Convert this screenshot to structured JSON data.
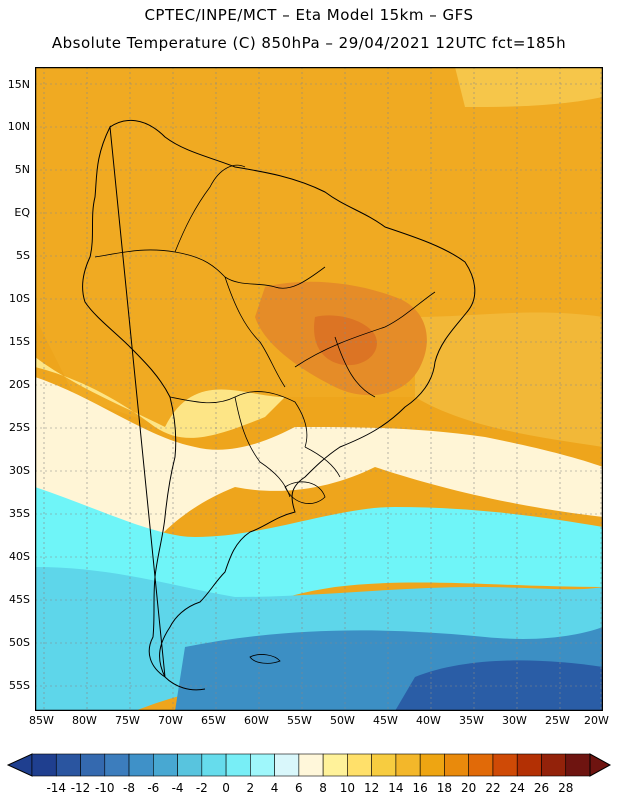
{
  "header": {
    "line1": "CPTEC/INPE/MCT –  Eta Model 15km – GFS",
    "line2": "Absolute Temperature (C) 850hPa – 29/04/2021 12UTC fct=185h"
  },
  "axes": {
    "lat_labels": [
      "15N",
      "10N",
      "5N",
      "EQ",
      "5S",
      "10S",
      "15S",
      "20S",
      "25S",
      "30S",
      "35S",
      "40S",
      "45S",
      "50S",
      "55S"
    ],
    "lon_labels": [
      "85W",
      "80W",
      "75W",
      "70W",
      "65W",
      "60W",
      "55W",
      "50W",
      "45W",
      "40W",
      "35W",
      "30W",
      "25W",
      "20W"
    ]
  },
  "colorbar": {
    "labels": [
      "-14",
      "-12",
      "-10",
      "-8",
      "-6",
      "-4",
      "-2",
      "0",
      "2",
      "4",
      "6",
      "8",
      "10",
      "12",
      "14",
      "16",
      "18",
      "20",
      "22",
      "24",
      "26",
      "28"
    ],
    "colors": [
      "#1f3f8f",
      "#2a55a0",
      "#3469af",
      "#3c7dbd",
      "#3f91c8",
      "#48a8d2",
      "#58c4de",
      "#66dcec",
      "#78eef6",
      "#9ff7fb",
      "#d9f7fb",
      "#fff7da",
      "#fff29a",
      "#ffe06a",
      "#f7cc40",
      "#f3b72a",
      "#eea512",
      "#e98a0c",
      "#e16a08",
      "#cf4a06",
      "#b33004",
      "#93220a",
      "#6e1410"
    ]
  },
  "map": {
    "colors": {
      "ocean_cold": "#2a5da6",
      "ocean_cool": "#3c8fc4",
      "ocean_mild": "#5ed6ea",
      "cyan": "#6ff5f8",
      "pale": "#fff5d6",
      "yellow": "#fde586",
      "gold": "#f4c23c",
      "orange": "#eea51c",
      "dark_orange": "#de7c24"
    }
  }
}
